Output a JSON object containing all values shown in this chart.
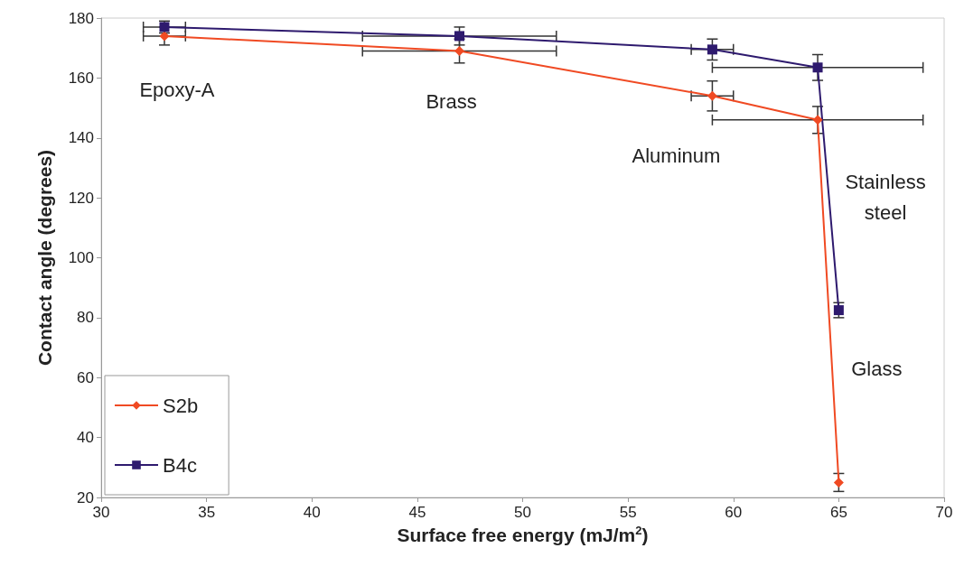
{
  "chart_data": {
    "type": "line",
    "xlabel": "Surface free energy (mJ/m$^{2}$)",
    "ylabel": "Contact angle (degrees)",
    "x": [
      33,
      47,
      59,
      64,
      65
    ],
    "series": [
      {
        "name": "S2b",
        "color": "#f04a23",
        "marker": "diamond",
        "values": [
          174,
          169,
          154,
          146,
          25
        ],
        "errors": [
          3,
          4,
          5,
          4.5,
          3
        ],
        "xerrors": [
          1,
          4.6,
          1,
          5,
          null
        ]
      },
      {
        "name": "B4c",
        "color": "#2e1a6e",
        "marker": "square",
        "values": [
          177,
          174,
          169.5,
          163.5,
          82.5
        ],
        "errors": [
          2,
          3,
          3.5,
          4.3,
          2.5
        ],
        "xerrors": [
          1,
          4.6,
          1,
          5,
          null
        ]
      }
    ],
    "xlim": [
      30,
      70
    ],
    "xticks": [
      30,
      35,
      40,
      45,
      50,
      55,
      60,
      65,
      70
    ],
    "ylim": [
      20,
      180
    ],
    "yticks": [
      20,
      40,
      60,
      80,
      100,
      120,
      140,
      160,
      180
    ],
    "grid": false,
    "legend": "bottom left",
    "line_style": "solid",
    "annotations": [
      "Epoxy-A",
      "Brass",
      "Aluminum",
      "Stainless\nsteel",
      "Glass"
    ]
  }
}
